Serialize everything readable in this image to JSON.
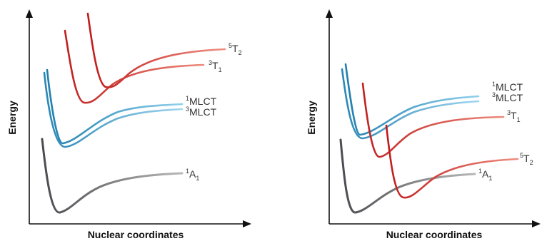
{
  "panels": [
    {
      "id": "left",
      "x_axis_label": "Nuclear coordinates",
      "y_axis_label": "Energy",
      "states": [
        {
          "key": "1A1",
          "sup": "1",
          "main": "A",
          "sub": "1",
          "color": "#6a6a6a"
        },
        {
          "key": "3MLCT",
          "sup": "3",
          "main": "MLCT",
          "sub": "",
          "color": "#2f8fb8"
        },
        {
          "key": "1MLCT",
          "sup": "1",
          "main": "MLCT",
          "sub": "",
          "color": "#5fb0d6"
        },
        {
          "key": "3T1",
          "sup": "3",
          "main": "T",
          "sub": "1",
          "color": "#d34a3c"
        },
        {
          "key": "5T2",
          "sup": "5",
          "main": "T",
          "sub": "2",
          "color": "#c41f1f"
        }
      ]
    },
    {
      "id": "right",
      "x_axis_label": "Nuclear coordinates",
      "y_axis_label": "Energy",
      "states": [
        {
          "key": "1A1",
          "sup": "1",
          "main": "A",
          "sub": "1",
          "color": "#6a6a6a"
        },
        {
          "key": "3MLCT",
          "sup": "3",
          "main": "MLCT",
          "sub": "",
          "color": "#2f8fb8"
        },
        {
          "key": "1MLCT",
          "sup": "1",
          "main": "MLCT",
          "sub": "",
          "color": "#5fb0d6"
        },
        {
          "key": "3T1",
          "sup": "3",
          "main": "T",
          "sub": "1",
          "color": "#d34a3c"
        },
        {
          "key": "5T2",
          "sup": "5",
          "main": "T",
          "sub": "2",
          "color": "#c41f1f"
        }
      ]
    }
  ]
}
